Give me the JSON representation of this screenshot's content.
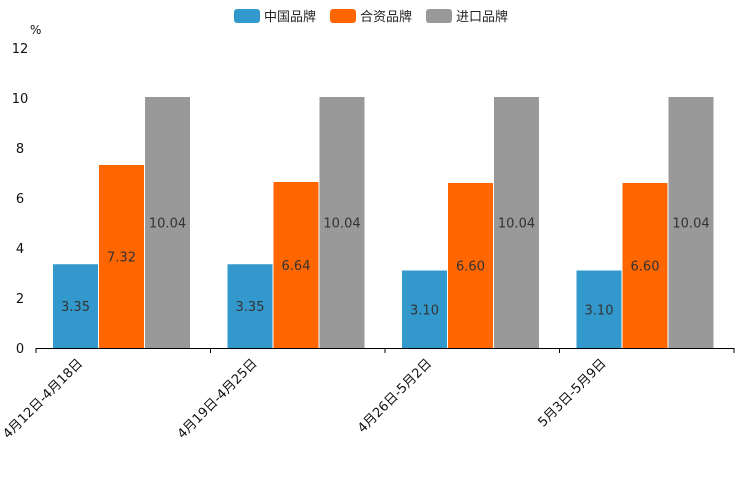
{
  "chart_data": {
    "type": "bar",
    "title": "",
    "xlabel": "",
    "ylabel": "%",
    "ylim": [
      0,
      12
    ],
    "yticks": [
      0,
      2,
      4,
      6,
      8,
      10,
      12
    ],
    "grid": false,
    "legend_position": "top-center",
    "categories": [
      "4月12日-4月18日",
      "4月19日-4月25日",
      "4月26日-5月2日",
      "5月3日-5月9日"
    ],
    "series": [
      {
        "name": "中国品牌",
        "color": "#3399cc",
        "values": [
          3.35,
          3.35,
          3.1,
          3.1
        ],
        "labels": [
          "3.35",
          "3.35",
          "3.10",
          "3.10"
        ]
      },
      {
        "name": "合资品牌",
        "color": "#ff6600",
        "values": [
          7.32,
          6.64,
          6.6,
          6.6
        ],
        "labels": [
          "7.32",
          "6.64",
          "6.60",
          "6.60"
        ]
      },
      {
        "name": "进口品牌",
        "color": "#999999",
        "values": [
          10.04,
          10.04,
          10.04,
          10.04
        ],
        "labels": [
          "10.04",
          "10.04",
          "10.04",
          "10.04"
        ]
      }
    ]
  }
}
